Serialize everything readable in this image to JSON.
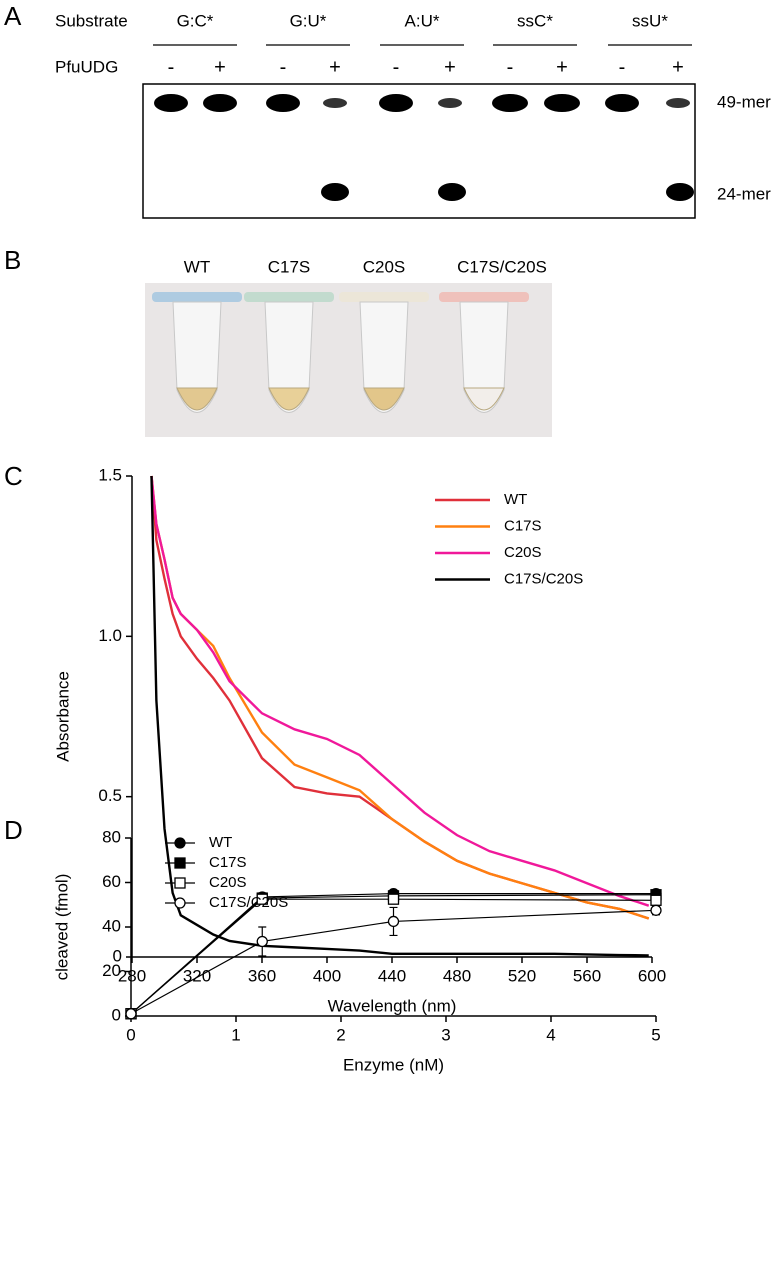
{
  "panel_labels": [
    "A",
    "B",
    "C",
    "D"
  ],
  "gel": {
    "row_labels": [
      "Substrate",
      "PfuUDG"
    ],
    "substrates": [
      "G:C*",
      "G:U*",
      "A:U*",
      "ssC*",
      "ssU*"
    ],
    "lanes": [
      "-",
      "+",
      "-",
      "+",
      "-",
      "+",
      "-",
      "+",
      "-",
      "+"
    ],
    "band_labels": [
      "49-mer",
      "24-mer"
    ]
  },
  "tubes": {
    "labels": [
      "WT",
      "C17S",
      "C20S",
      "C17S/C20S"
    ]
  },
  "chart_data": [
    {
      "type": "line",
      "xlabel": "Wavelength (nm)",
      "ylabel": "Absorbance",
      "x": [
        292,
        295,
        300,
        305,
        310,
        320,
        330,
        340,
        360,
        380,
        400,
        420,
        440,
        460,
        480,
        500,
        520,
        540,
        560,
        580,
        598
      ],
      "series": [
        {
          "name": "WT",
          "color": "#e0303a",
          "values": [
            1.5,
            1.3,
            1.18,
            1.07,
            1.0,
            0.93,
            0.87,
            0.8,
            0.62,
            0.53,
            0.51,
            0.5,
            0.43,
            0.36,
            0.3,
            0.26,
            0.23,
            0.2,
            0.17,
            0.15,
            0.12
          ]
        },
        {
          "name": "C17S",
          "color": "#ff8010",
          "values": [
            1.5,
            1.35,
            1.24,
            1.12,
            1.07,
            1.02,
            0.97,
            0.87,
            0.7,
            0.6,
            0.56,
            0.52,
            0.43,
            0.36,
            0.3,
            0.26,
            0.23,
            0.2,
            0.17,
            0.15,
            0.12
          ]
        },
        {
          "name": "C20S",
          "color": "#f0189a",
          "values": [
            1.5,
            1.35,
            1.24,
            1.12,
            1.07,
            1.02,
            0.95,
            0.86,
            0.76,
            0.71,
            0.68,
            0.63,
            0.54,
            0.45,
            0.38,
            0.33,
            0.3,
            0.27,
            0.23,
            0.19,
            0.16
          ]
        },
        {
          "name": "C17S/C20S",
          "color": "#000000",
          "values": [
            1.5,
            0.8,
            0.4,
            0.2,
            0.13,
            0.1,
            0.07,
            0.05,
            0.035,
            0.03,
            0.025,
            0.02,
            0.01,
            0.01,
            0.01,
            0.01,
            0.01,
            0.01,
            0.008,
            0.006,
            0.005
          ]
        }
      ],
      "xlim": [
        280,
        600
      ],
      "xticks": [
        280,
        320,
        360,
        400,
        440,
        480,
        520,
        560,
        600
      ],
      "ylim": [
        0,
        1.5
      ],
      "yticks": [
        0,
        0.5,
        {
          "value": 1,
          "label": "1.0"
        },
        1.5
      ],
      "legend": "upper right"
    },
    {
      "type": "line",
      "xlabel": "Enzyme (nM)",
      "ylabel": "cleaved (fmol)",
      "x": [
        0,
        1.25,
        2.5,
        5
      ],
      "series": [
        {
          "name": "WT",
          "color": "#000000",
          "marker": "filled-circle",
          "values": [
            1,
            53.5,
            55,
            55
          ],
          "error": [
            0.5,
            1.8,
            1.2,
            1.5
          ]
        },
        {
          "name": "C17S",
          "color": "#000000",
          "marker": "filled-square",
          "values": [
            1,
            53,
            54,
            54.5
          ],
          "error": [
            0.5,
            2,
            1,
            1.5
          ]
        },
        {
          "name": "C20S",
          "color": "#000000",
          "marker": "open-square",
          "values": [
            1,
            52.5,
            52.5,
            52
          ],
          "error": [
            0.5,
            1.5,
            1,
            1
          ]
        },
        {
          "name": "C17S/C20S",
          "color": "#000000",
          "marker": "open-circle",
          "values": [
            1,
            33.5,
            42.5,
            47.5
          ],
          "error": [
            0.5,
            6.5,
            6.3,
            2
          ]
        }
      ],
      "xlim": [
        0,
        5
      ],
      "xticks": [
        0,
        1,
        2,
        3,
        4,
        5
      ],
      "ylim": [
        0,
        80
      ],
      "yticks": [
        0,
        20,
        40,
        60,
        80
      ],
      "legend": "upper left"
    }
  ]
}
